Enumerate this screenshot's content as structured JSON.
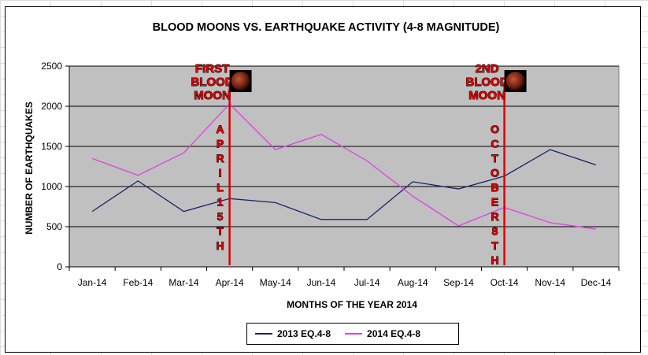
{
  "chart_data": {
    "type": "line",
    "title": "BLOOD MOONS VS. EARTHQUAKE ACTIVITY (4-8 MAGNITUDE)",
    "xlabel": "MONTHS OF THE YEAR 2014",
    "ylabel": "NUMBER OF EARTHQUAKES",
    "ylim": [
      0,
      2500
    ],
    "yticks": [
      0,
      500,
      1000,
      1500,
      2000,
      2500
    ],
    "grid": true,
    "legend_position": "bottom",
    "categories": [
      "Jan-14",
      "Feb-14",
      "Mar-14",
      "Apr-14",
      "May-14",
      "Jun-14",
      "Jul-14",
      "Aug-14",
      "Sep-14",
      "Oct-14",
      "Nov-14",
      "Dec-14"
    ],
    "series": [
      {
        "name": "2013 EQ.4-8",
        "color": "#1f1f6e",
        "values": [
          690,
          1070,
          690,
          850,
          800,
          590,
          590,
          1060,
          970,
          1130,
          1460,
          1270
        ]
      },
      {
        "name": "2014 EQ.4-8",
        "color": "#e040e0",
        "values": [
          1350,
          1140,
          1420,
          2030,
          1460,
          1650,
          1320,
          880,
          510,
          740,
          550,
          470
        ]
      }
    ],
    "plot_background": "#c0c0c0",
    "annotations": [
      {
        "label_lines": [
          "FIRST",
          "BLOOD",
          "MOON"
        ],
        "vertical_text": "APRIL 15TH",
        "x_month_index": 3.5,
        "color": "#e00000"
      },
      {
        "label_lines": [
          "2ND",
          "BLOOD",
          "MOON"
        ],
        "vertical_text": "OCTOBER 8TH",
        "x_month_index": 9.5,
        "color": "#e00000"
      }
    ]
  }
}
